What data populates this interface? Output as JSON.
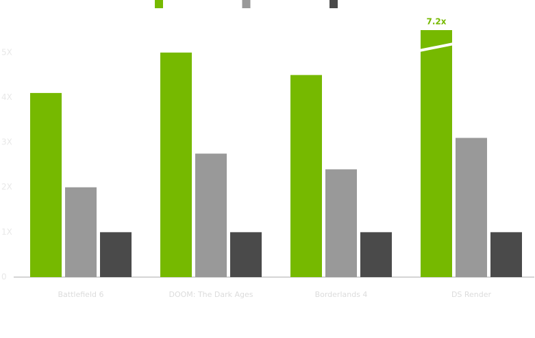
{
  "chart_data": {
    "type": "bar",
    "categories": [
      "Battlefield 6",
      "DOOM: The Dark Ages",
      "Borderlands 4",
      "DS Render"
    ],
    "series": [
      {
        "color": "#76b900",
        "values": [
          4.1,
          5.0,
          4.5,
          7.2
        ],
        "value_labels": [
          null,
          null,
          null,
          "7.2x"
        ]
      },
      {
        "color": "#999999",
        "values": [
          2.0,
          2.75,
          2.4,
          3.1
        ]
      },
      {
        "color": "#4a4a4a",
        "values": [
          1.0,
          1.0,
          1.0,
          1.0
        ]
      }
    ],
    "ylim": [
      0,
      5.5
    ],
    "yticks": [
      0,
      {
        "value": 1,
        "label": "1X"
      },
      {
        "value": 2,
        "label": "2X"
      },
      {
        "value": 3,
        "label": "3X"
      },
      {
        "value": 4,
        "label": "4X"
      },
      {
        "value": 5,
        "label": "5X"
      }
    ],
    "grid": false
  }
}
